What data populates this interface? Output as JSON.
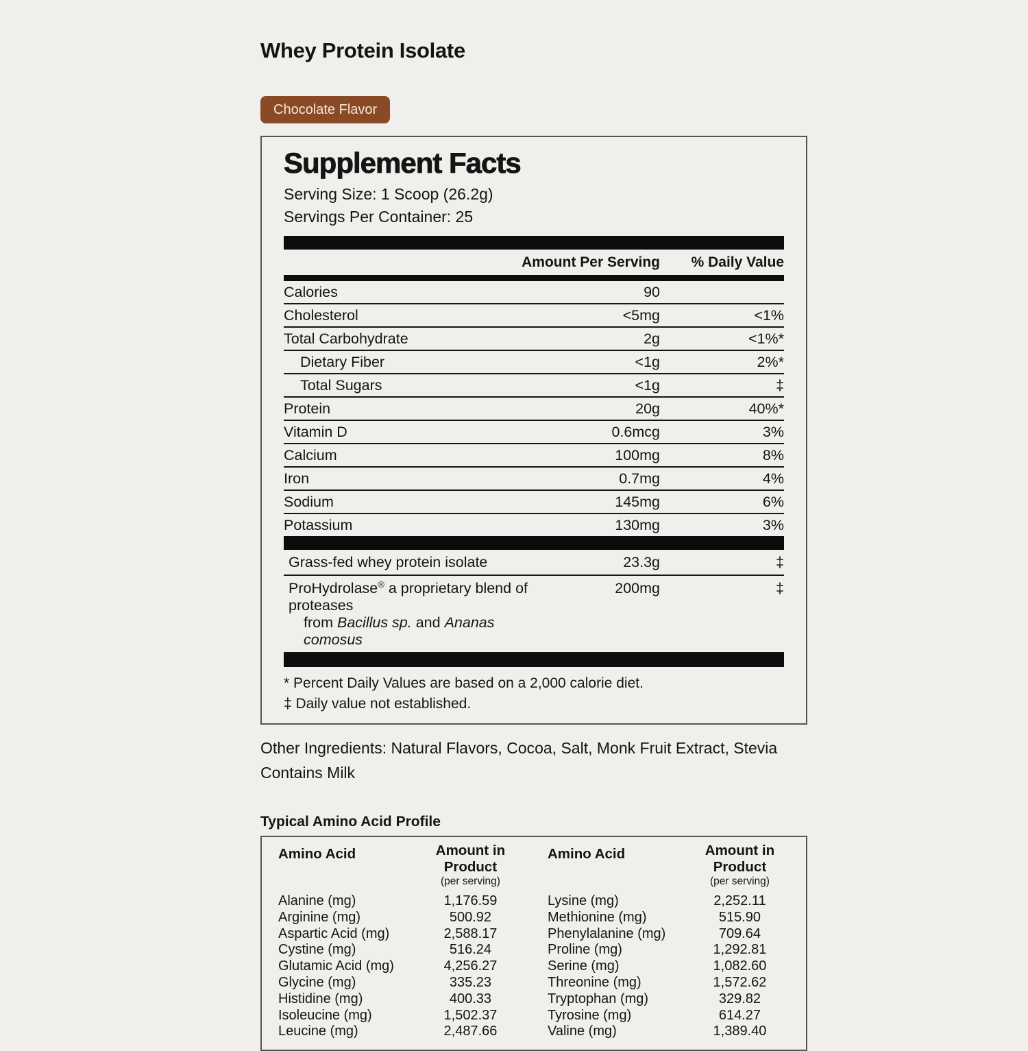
{
  "page": {
    "title": "Whey Protein Isolate",
    "flavor_badge": "Chocolate Flavor",
    "badge_color": "#8a4a26",
    "background_color": "#f0efeb"
  },
  "supplement_facts": {
    "heading": "Supplement Facts",
    "serving_size": "Serving Size: 1 Scoop (26.2g)",
    "servings_per_container": "Servings Per Container: 25",
    "col_amount": "Amount Per Serving",
    "col_dv": "% Daily Value",
    "rows": [
      {
        "label": "Calories",
        "amount": "90",
        "dv": "",
        "indent": false
      },
      {
        "label": "Cholesterol",
        "amount": "<5mg",
        "dv": "<1%",
        "indent": false
      },
      {
        "label": "Total Carbohydrate",
        "amount": "2g",
        "dv": "<1%*",
        "indent": false
      },
      {
        "label": "Dietary Fiber",
        "amount": "<1g",
        "dv": "2%*",
        "indent": true
      },
      {
        "label": "Total Sugars",
        "amount": "<1g",
        "dv": "‡",
        "indent": true
      },
      {
        "label": "Protein",
        "amount": "20g",
        "dv": "40%*",
        "indent": false
      },
      {
        "label": "Vitamin D",
        "amount": "0.6mcg",
        "dv": "3%",
        "indent": false
      },
      {
        "label": "Calcium",
        "amount": "100mg",
        "dv": "8%",
        "indent": false
      },
      {
        "label": "Iron",
        "amount": "0.7mg",
        "dv": "4%",
        "indent": false
      },
      {
        "label": "Sodium",
        "amount": "145mg",
        "dv": "6%",
        "indent": false
      },
      {
        "label": "Potassium",
        "amount": "130mg",
        "dv": "3%",
        "indent": false
      }
    ],
    "grassfed": {
      "label": "Grass-fed whey protein isolate",
      "amount": "23.3g",
      "dv": "‡"
    },
    "prohydrolase": {
      "name": "ProHydrolase",
      "reg": "®",
      "tail": " a proprietary blend of proteases",
      "from": "from ",
      "italic1": "Bacillus sp.",
      "and": " and ",
      "italic2": "Ananas comosus",
      "amount": "200mg",
      "dv": "‡"
    },
    "footnotes": [
      "* Percent Daily Values are based on a 2,000 calorie diet.",
      "‡ Daily value not established."
    ]
  },
  "other_ingredients": {
    "line1": "Other Ingredients: Natural Flavors, Cocoa, Salt, Monk Fruit Extract, Stevia",
    "line2": "Contains Milk"
  },
  "amino_profile": {
    "heading": "Typical Amino Acid Profile",
    "col_name": "Amino Acid",
    "col_amount": "Amount in Product",
    "col_amount_sub": "(per serving)",
    "left": [
      {
        "name": "Alanine (mg)",
        "value": "1,176.59"
      },
      {
        "name": "Arginine (mg)",
        "value": "500.92"
      },
      {
        "name": "Aspartic Acid (mg)",
        "value": "2,588.17"
      },
      {
        "name": "Cystine (mg)",
        "value": "516.24"
      },
      {
        "name": "Glutamic Acid (mg)",
        "value": "4,256.27"
      },
      {
        "name": "Glycine (mg)",
        "value": "335.23"
      },
      {
        "name": "Histidine (mg)",
        "value": "400.33"
      },
      {
        "name": "Isoleucine (mg)",
        "value": "1,502.37"
      },
      {
        "name": "Leucine (mg)",
        "value": "2,487.66"
      }
    ],
    "right": [
      {
        "name": "Lysine (mg)",
        "value": "2,252.11"
      },
      {
        "name": "Methionine (mg)",
        "value": "515.90"
      },
      {
        "name": "Phenylalanine (mg)",
        "value": "709.64"
      },
      {
        "name": "Proline (mg)",
        "value": "1,292.81"
      },
      {
        "name": "Serine (mg)",
        "value": "1,082.60"
      },
      {
        "name": "Threonine (mg)",
        "value": "1,572.62"
      },
      {
        "name": "Tryptophan (mg)",
        "value": "329.82"
      },
      {
        "name": "Tyrosine (mg)",
        "value": "614.27"
      },
      {
        "name": "Valine (mg)",
        "value": "1,389.40"
      }
    ]
  }
}
